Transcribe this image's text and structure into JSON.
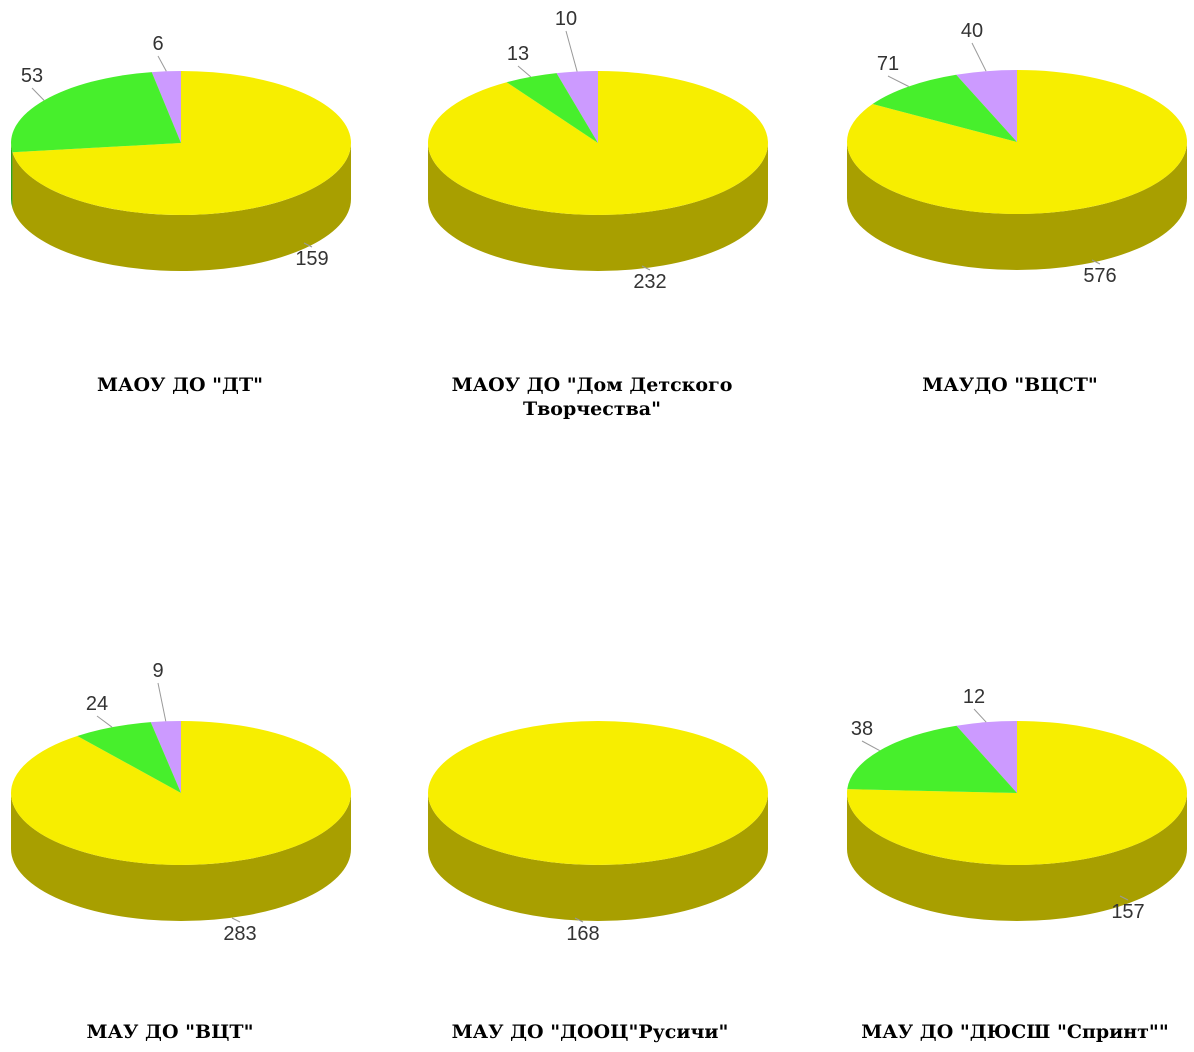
{
  "colors": {
    "series_a": "#f7ee00",
    "series_a_side": "#a89f00",
    "series_b": "#47ef2c",
    "series_b_side": "#2da31b",
    "series_c": "#cc9aff",
    "series_c_side": "#8c64b8",
    "label_text": "#333333",
    "leader_line": "#999999"
  },
  "chart_data": [
    {
      "type": "pie",
      "style": "3d",
      "title": "МАОУ ДО \"ДТ\"",
      "values": [
        159,
        53,
        6
      ]
    },
    {
      "type": "pie",
      "style": "3d",
      "title": "МАОУ ДО \"Дом Детского Творчества\"",
      "values": [
        232,
        13,
        10
      ]
    },
    {
      "type": "pie",
      "style": "3d",
      "title": "МАУДО \"ВЦСТ\"",
      "values": [
        576,
        71,
        40
      ]
    },
    {
      "type": "pie",
      "style": "3d",
      "title": "МАУ ДО \"ВЦТ\"",
      "values": [
        283,
        24,
        9
      ]
    },
    {
      "type": "pie",
      "style": "3d",
      "title": "МАУ ДО \"ДООЦ\"Русичи\"",
      "values": [
        168
      ]
    },
    {
      "type": "pie",
      "style": "3d",
      "title": "МАУ ДО \"ДЮСШ \"Спринт\"\"",
      "values": [
        157,
        38,
        12
      ]
    }
  ]
}
